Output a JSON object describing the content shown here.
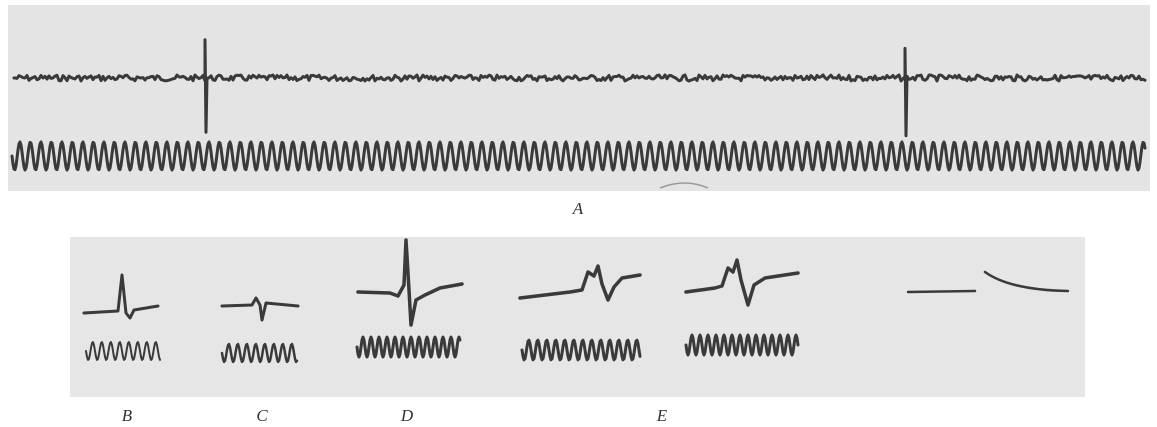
{
  "figure_labels": [
    "A",
    "B",
    "C",
    "D",
    "E"
  ]
}
